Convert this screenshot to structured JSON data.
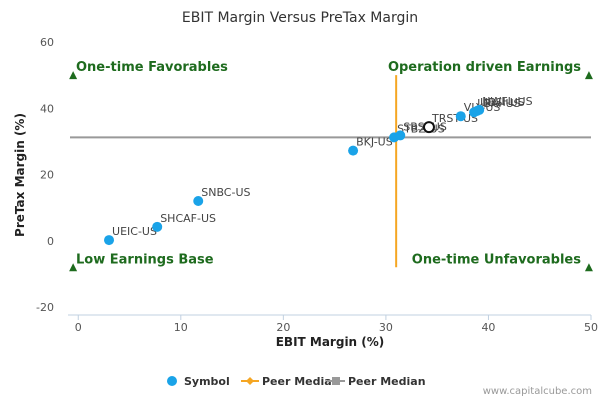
{
  "chart_data": {
    "type": "scatter",
    "title": "EBIT Margin Versus PreTax Margin",
    "xlabel": "EBIT Margin (%)",
    "ylabel": "PreTax Margin (%)",
    "xlim": [
      -1,
      50
    ],
    "ylim": [
      -20,
      60
    ],
    "x_ticks": [
      0,
      10,
      20,
      30,
      40,
      50
    ],
    "y_ticks": [
      -20,
      0,
      20,
      40,
      60
    ],
    "x_tick_labels": [
      "0",
      "10",
      "20",
      "30",
      "40",
      "50"
    ],
    "y_tick_labels": [
      "-20",
      "0",
      "20",
      "40",
      "60"
    ],
    "points": [
      {
        "label": "UEIC-US",
        "x": 3.0,
        "y": 0.2,
        "highlight": false
      },
      {
        "label": "SHCAF-US",
        "x": 7.7,
        "y": 4.2,
        "highlight": false
      },
      {
        "label": "SNBC-US",
        "x": 11.7,
        "y": 12.0,
        "highlight": false
      },
      {
        "label": "BKJ-US",
        "x": 26.8,
        "y": 27.2,
        "highlight": false
      },
      {
        "label": "STBZ-US",
        "x": 30.8,
        "y": 31.2,
        "highlight": false
      },
      {
        "label": "SBSI-US",
        "x": 31.4,
        "y": 31.8,
        "highlight": false
      },
      {
        "label": "TRST-US",
        "x": 34.2,
        "y": 34.3,
        "highlight": true
      },
      {
        "label": "VLY-US",
        "x": 37.3,
        "y": 37.6,
        "highlight": false
      },
      {
        "label": "LBAI-US",
        "x": 38.6,
        "y": 38.8,
        "highlight": false
      },
      {
        "label": "UBSI-US",
        "x": 38.9,
        "y": 39.2,
        "highlight": false
      },
      {
        "label": "NWFL-US",
        "x": 39.1,
        "y": 39.5,
        "highlight": false
      }
    ],
    "peer_median_x": 31.0,
    "peer_median_y": 31.2,
    "quadrant_labels": {
      "top_left": "One-time Favorables",
      "top_right": "Operation driven Earnings",
      "bottom_left": "Low Earnings Base",
      "bottom_right": "One-time Unfavorables"
    },
    "legend": [
      {
        "name": "Symbol",
        "color": "#1aa3e8",
        "marker": "circle"
      },
      {
        "name": "Peer Median",
        "color": "#f5a623",
        "marker": "diamond-line"
      },
      {
        "name": "Peer Median",
        "color": "#999999",
        "marker": "square-line"
      }
    ],
    "colors": {
      "point": "#1aa3e8",
      "vertical_median": "#f5a623",
      "horizontal_median": "#999999",
      "quadrant_text": "#1e6b1e",
      "triangle": "#1e6b1e"
    },
    "credit": "www.capitalcube.com"
  }
}
